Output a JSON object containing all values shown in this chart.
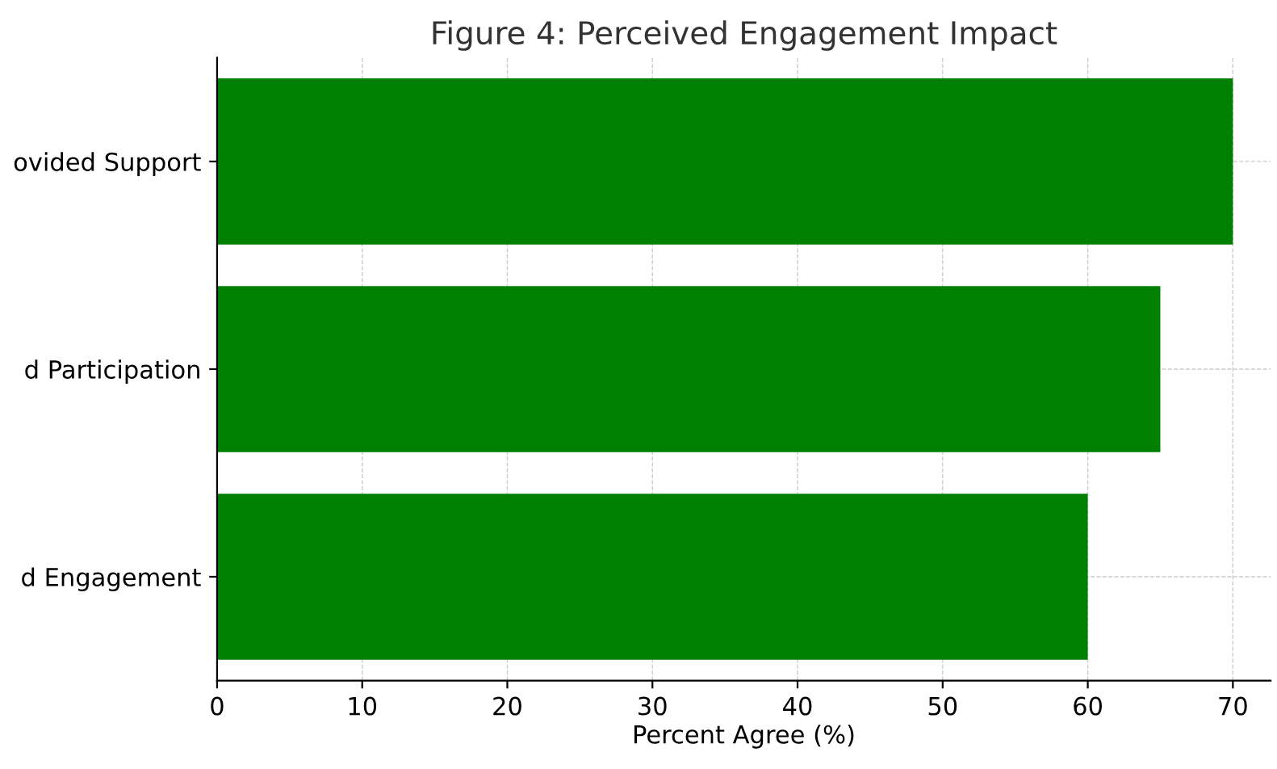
{
  "chart_data": {
    "type": "bar",
    "orientation": "horizontal",
    "title": "Figure 4: Perceived Engagement Impact",
    "xlabel": "Percent Agree (%)",
    "categories": [
      "ovided Support",
      "d Participation",
      "d Engagement"
    ],
    "values": [
      70,
      65,
      60
    ],
    "color": "#008000",
    "xlim": [
      0,
      72.6
    ],
    "xticks": [
      0,
      10,
      20,
      30,
      40,
      50,
      60,
      70
    ],
    "grid": true
  }
}
